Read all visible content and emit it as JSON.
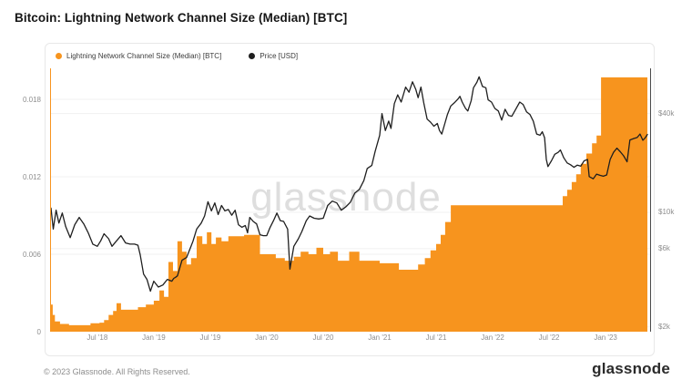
{
  "page": {
    "title": "Bitcoin: Lightning Network Channel Size (Median) [BTC]"
  },
  "watermark": "glassnode",
  "footer": {
    "copyright": "© 2023 Glassnode. All Rights Reserved.",
    "logo": "glassnode"
  },
  "chart_data": {
    "type": "area+line",
    "title": "Bitcoin: Lightning Network Channel Size (Median) [BTC]",
    "grid": true,
    "legend_position": "top-left",
    "x_domain": [
      2018.09,
      2023.37
    ],
    "x_ticks": [
      {
        "t": 2018.5,
        "label": "Jul '18"
      },
      {
        "t": 2019.0,
        "label": "Jan '19"
      },
      {
        "t": 2019.5,
        "label": "Jul '19"
      },
      {
        "t": 2020.0,
        "label": "Jan '20"
      },
      {
        "t": 2020.5,
        "label": "Jul '20"
      },
      {
        "t": 2021.0,
        "label": "Jan '21"
      },
      {
        "t": 2021.5,
        "label": "Jul '21"
      },
      {
        "t": 2022.0,
        "label": "Jan '22"
      },
      {
        "t": 2022.5,
        "label": "Jul '22"
      },
      {
        "t": 2023.0,
        "label": "Jan '23"
      }
    ],
    "y_left": {
      "unit": "BTC",
      "scale": "linear",
      "domain": [
        0,
        0.0204
      ],
      "ticks": [
        {
          "v": 0,
          "label": "0"
        },
        {
          "v": 0.006,
          "label": "0.006"
        },
        {
          "v": 0.012,
          "label": "0.012"
        },
        {
          "v": 0.018,
          "label": "0.018"
        }
      ]
    },
    "y_right": {
      "unit": "USD (thousands)",
      "scale": "log",
      "domain_kusd": [
        1.87,
        75.5
      ],
      "ticks": [
        {
          "v": 2,
          "label": "$2k"
        },
        {
          "v": 6,
          "label": "$6k"
        },
        {
          "v": 10,
          "label": "$10k"
        },
        {
          "v": 40,
          "label": "$40k"
        }
      ]
    },
    "series": [
      {
        "name": "Lightning Network Channel Size (Median) [BTC]",
        "axis": "left",
        "type": "step-area",
        "color": "#f7941e",
        "points": [
          [
            2018.09,
            0.0021
          ],
          [
            2018.105,
            0.0013
          ],
          [
            2018.125,
            0.0008
          ],
          [
            2018.17,
            0.0006
          ],
          [
            2018.25,
            0.0005
          ],
          [
            2018.38,
            0.0005
          ],
          [
            2018.44,
            0.00065
          ],
          [
            2018.52,
            0.0007
          ],
          [
            2018.56,
            0.0009
          ],
          [
            2018.6,
            0.0013
          ],
          [
            2018.64,
            0.0016
          ],
          [
            2018.67,
            0.0022
          ],
          [
            2018.71,
            0.0017
          ],
          [
            2018.8,
            0.0017
          ],
          [
            2018.86,
            0.0019
          ],
          [
            2018.93,
            0.0021
          ],
          [
            2019.0,
            0.0024
          ],
          [
            2019.05,
            0.0032
          ],
          [
            2019.09,
            0.0027
          ],
          [
            2019.13,
            0.0054
          ],
          [
            2019.17,
            0.0047
          ],
          [
            2019.21,
            0.007
          ],
          [
            2019.25,
            0.0062
          ],
          [
            2019.29,
            0.0052
          ],
          [
            2019.33,
            0.0057
          ],
          [
            2019.38,
            0.0074
          ],
          [
            2019.43,
            0.0068
          ],
          [
            2019.47,
            0.0077
          ],
          [
            2019.51,
            0.0068
          ],
          [
            2019.55,
            0.0073
          ],
          [
            2019.6,
            0.007
          ],
          [
            2019.66,
            0.0074
          ],
          [
            2019.8,
            0.0075
          ],
          [
            2019.94,
            0.006
          ],
          [
            2020.08,
            0.0057
          ],
          [
            2020.16,
            0.0055
          ],
          [
            2020.24,
            0.0058
          ],
          [
            2020.3,
            0.0062
          ],
          [
            2020.37,
            0.006
          ],
          [
            2020.44,
            0.0065
          ],
          [
            2020.5,
            0.006
          ],
          [
            2020.56,
            0.0062
          ],
          [
            2020.63,
            0.0055
          ],
          [
            2020.73,
            0.0062
          ],
          [
            2020.82,
            0.0055
          ],
          [
            2021.0,
            0.0053
          ],
          [
            2021.17,
            0.0048
          ],
          [
            2021.34,
            0.0052
          ],
          [
            2021.4,
            0.0057
          ],
          [
            2021.45,
            0.0063
          ],
          [
            2021.5,
            0.0068
          ],
          [
            2021.54,
            0.0075
          ],
          [
            2021.58,
            0.0085
          ],
          [
            2021.63,
            0.0098
          ],
          [
            2022.55,
            0.0098
          ],
          [
            2022.62,
            0.0105
          ],
          [
            2022.66,
            0.011
          ],
          [
            2022.7,
            0.0116
          ],
          [
            2022.74,
            0.0122
          ],
          [
            2022.78,
            0.013
          ],
          [
            2022.83,
            0.0138
          ],
          [
            2022.88,
            0.0146
          ],
          [
            2022.92,
            0.0152
          ],
          [
            2022.96,
            0.0197
          ],
          [
            2023.37,
            0.0197
          ]
        ]
      },
      {
        "name": "Price [USD]",
        "axis": "right",
        "type": "line",
        "color": "#1f1f1f",
        "points": [
          [
            2018.09,
            10.6
          ],
          [
            2018.11,
            7.9
          ],
          [
            2018.135,
            10.3
          ],
          [
            2018.16,
            8.6
          ],
          [
            2018.19,
            9.9
          ],
          [
            2018.22,
            8.2
          ],
          [
            2018.26,
            7.0
          ],
          [
            2018.3,
            8.4
          ],
          [
            2018.34,
            9.3
          ],
          [
            2018.38,
            8.5
          ],
          [
            2018.42,
            7.5
          ],
          [
            2018.46,
            6.4
          ],
          [
            2018.5,
            6.2
          ],
          [
            2018.53,
            6.7
          ],
          [
            2018.56,
            7.4
          ],
          [
            2018.6,
            6.9
          ],
          [
            2018.63,
            6.2
          ],
          [
            2018.67,
            6.7
          ],
          [
            2018.71,
            7.2
          ],
          [
            2018.75,
            6.5
          ],
          [
            2018.79,
            6.4
          ],
          [
            2018.83,
            6.4
          ],
          [
            2018.86,
            6.3
          ],
          [
            2018.88,
            5.5
          ],
          [
            2018.91,
            4.2
          ],
          [
            2018.94,
            3.9
          ],
          [
            2018.97,
            3.3
          ],
          [
            2019.0,
            3.8
          ],
          [
            2019.04,
            3.5
          ],
          [
            2019.08,
            3.6
          ],
          [
            2019.12,
            3.9
          ],
          [
            2019.16,
            3.8
          ],
          [
            2019.21,
            4.1
          ],
          [
            2019.25,
            5.1
          ],
          [
            2019.29,
            5.3
          ],
          [
            2019.33,
            6.2
          ],
          [
            2019.38,
            7.9
          ],
          [
            2019.42,
            8.6
          ],
          [
            2019.45,
            9.5
          ],
          [
            2019.48,
            11.6
          ],
          [
            2019.51,
            10.2
          ],
          [
            2019.54,
            11.4
          ],
          [
            2019.57,
            9.7
          ],
          [
            2019.6,
            11.0
          ],
          [
            2019.63,
            10.2
          ],
          [
            2019.66,
            10.4
          ],
          [
            2019.69,
            9.6
          ],
          [
            2019.72,
            10.3
          ],
          [
            2019.75,
            8.4
          ],
          [
            2019.78,
            8.1
          ],
          [
            2019.81,
            8.3
          ],
          [
            2019.83,
            7.5
          ],
          [
            2019.85,
            9.3
          ],
          [
            2019.88,
            8.8
          ],
          [
            2019.91,
            8.5
          ],
          [
            2019.94,
            7.3
          ],
          [
            2019.97,
            7.2
          ],
          [
            2020.0,
            7.2
          ],
          [
            2020.03,
            8.1
          ],
          [
            2020.06,
            8.9
          ],
          [
            2020.09,
            9.9
          ],
          [
            2020.12,
            8.9
          ],
          [
            2020.15,
            8.8
          ],
          [
            2020.185,
            7.9
          ],
          [
            2020.205,
            4.5
          ],
          [
            2020.24,
            6.2
          ],
          [
            2020.28,
            6.9
          ],
          [
            2020.31,
            7.6
          ],
          [
            2020.35,
            8.9
          ],
          [
            2020.38,
            9.5
          ],
          [
            2020.42,
            9.2
          ],
          [
            2020.46,
            9.1
          ],
          [
            2020.5,
            9.2
          ],
          [
            2020.54,
            11.0
          ],
          [
            2020.58,
            11.7
          ],
          [
            2020.62,
            11.4
          ],
          [
            2020.66,
            10.3
          ],
          [
            2020.7,
            10.8
          ],
          [
            2020.74,
            11.5
          ],
          [
            2020.78,
            13.1
          ],
          [
            2020.82,
            13.8
          ],
          [
            2020.86,
            15.6
          ],
          [
            2020.89,
            18.5
          ],
          [
            2020.93,
            19.3
          ],
          [
            2020.96,
            23.5
          ],
          [
            2021.0,
            29.5
          ],
          [
            2021.02,
            40.0
          ],
          [
            2021.05,
            31.5
          ],
          [
            2021.08,
            36.0
          ],
          [
            2021.1,
            32.5
          ],
          [
            2021.13,
            46.0
          ],
          [
            2021.16,
            52.0
          ],
          [
            2021.19,
            47.0
          ],
          [
            2021.23,
            58.0
          ],
          [
            2021.26,
            54.0
          ],
          [
            2021.29,
            62.5
          ],
          [
            2021.32,
            56.0
          ],
          [
            2021.34,
            50.0
          ],
          [
            2021.365,
            58.0
          ],
          [
            2021.39,
            46.5
          ],
          [
            2021.42,
            37.0
          ],
          [
            2021.45,
            35.5
          ],
          [
            2021.48,
            33.5
          ],
          [
            2021.51,
            34.8
          ],
          [
            2021.53,
            31.5
          ],
          [
            2021.55,
            30.0
          ],
          [
            2021.57,
            33.5
          ],
          [
            2021.6,
            39.5
          ],
          [
            2021.63,
            44.5
          ],
          [
            2021.66,
            46.5
          ],
          [
            2021.69,
            48.8
          ],
          [
            2021.71,
            51.0
          ],
          [
            2021.73,
            47.0
          ],
          [
            2021.76,
            43.0
          ],
          [
            2021.78,
            41.5
          ],
          [
            2021.81,
            48.0
          ],
          [
            2021.83,
            57.5
          ],
          [
            2021.86,
            62.0
          ],
          [
            2021.88,
            67.0
          ],
          [
            2021.91,
            58.5
          ],
          [
            2021.94,
            57.5
          ],
          [
            2021.96,
            48.5
          ],
          [
            2021.99,
            47.0
          ],
          [
            2022.02,
            43.0
          ],
          [
            2022.05,
            41.5
          ],
          [
            2022.08,
            36.5
          ],
          [
            2022.11,
            42.5
          ],
          [
            2022.14,
            39.0
          ],
          [
            2022.17,
            38.5
          ],
          [
            2022.2,
            42.0
          ],
          [
            2022.24,
            47.0
          ],
          [
            2022.27,
            45.5
          ],
          [
            2022.3,
            41.0
          ],
          [
            2022.33,
            39.5
          ],
          [
            2022.36,
            36.0
          ],
          [
            2022.39,
            30.0
          ],
          [
            2022.42,
            29.5
          ],
          [
            2022.44,
            31.0
          ],
          [
            2022.46,
            28.5
          ],
          [
            2022.475,
            21.0
          ],
          [
            2022.49,
            19.0
          ],
          [
            2022.52,
            20.6
          ],
          [
            2022.55,
            22.6
          ],
          [
            2022.58,
            23.2
          ],
          [
            2022.6,
            24.0
          ],
          [
            2022.63,
            21.5
          ],
          [
            2022.66,
            20.0
          ],
          [
            2022.69,
            19.5
          ],
          [
            2022.72,
            18.8
          ],
          [
            2022.75,
            19.4
          ],
          [
            2022.78,
            19.1
          ],
          [
            2022.81,
            20.6
          ],
          [
            2022.84,
            21.0
          ],
          [
            2022.855,
            16.5
          ],
          [
            2022.89,
            16.0
          ],
          [
            2022.92,
            17.1
          ],
          [
            2022.95,
            16.8
          ],
          [
            2022.98,
            16.6
          ],
          [
            2023.01,
            16.9
          ],
          [
            2023.04,
            21.0
          ],
          [
            2023.07,
            23.2
          ],
          [
            2023.1,
            24.6
          ],
          [
            2023.13,
            23.4
          ],
          [
            2023.16,
            22.1
          ],
          [
            2023.19,
            20.3
          ],
          [
            2023.215,
            27.6
          ],
          [
            2023.25,
            28.2
          ],
          [
            2023.28,
            28.6
          ],
          [
            2023.305,
            30.0
          ],
          [
            2023.33,
            27.5
          ],
          [
            2023.35,
            28.4
          ],
          [
            2023.37,
            29.8
          ]
        ]
      }
    ]
  }
}
